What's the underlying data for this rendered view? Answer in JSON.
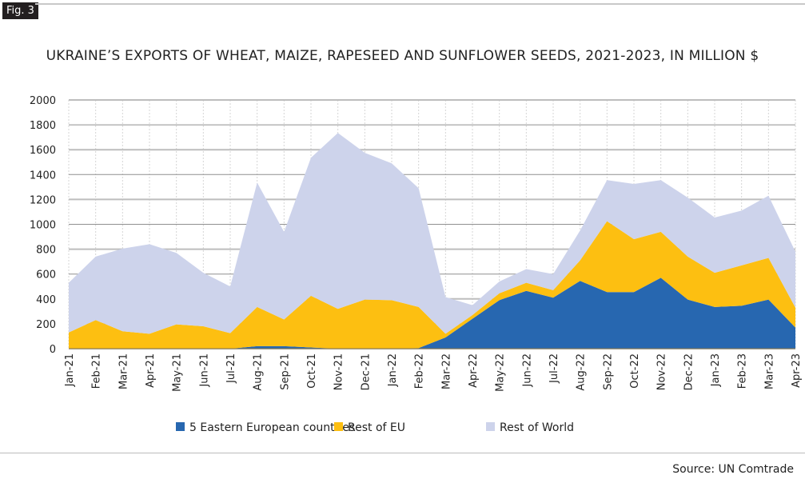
{
  "fig_label": "Fig. 3",
  "source": "Source: UN Comtrade",
  "chart_data": {
    "type": "area",
    "stacked": true,
    "title": "UKRAINE’S EXPORTS OF WHEAT, MAIZE, RAPESEED AND SUNFLOWER SEEDS, 2021-2023, IN MILLION $",
    "xlabel": "",
    "ylabel": "",
    "ylim": [
      0,
      2000
    ],
    "yticks": [
      0,
      200,
      400,
      600,
      800,
      1000,
      1200,
      1400,
      1600,
      1800,
      2000
    ],
    "grid": true,
    "legend_placement": "bottom",
    "categories": [
      "Jan-21",
      "Feb-21",
      "Mar-21",
      "Apr-21",
      "May-21",
      "Jun-21",
      "Jul-21",
      "Aug-21",
      "Sep-21",
      "Oct-21",
      "Nov-21",
      "Dec-21",
      "Jan-22",
      "Feb-22",
      "Mar-22",
      "Apr-22",
      "May-22",
      "Jun-22",
      "Jul-22",
      "Aug-22",
      "Sep-22",
      "Oct-22",
      "Nov-22",
      "Dec-22",
      "Jan-23",
      "Feb-23",
      "Mar-23",
      "Apr-23"
    ],
    "series": [
      {
        "name": "5 Eastern European countries",
        "color": "#2767b0",
        "values": [
          0,
          0,
          0,
          0,
          0,
          0,
          0,
          20,
          20,
          10,
          0,
          0,
          0,
          5,
          90,
          240,
          390,
          465,
          410,
          545,
          455,
          455,
          570,
          395,
          335,
          345,
          395,
          170
        ]
      },
      {
        "name": "Rest of EU",
        "color": "#fdbf11",
        "values": [
          130,
          230,
          140,
          120,
          195,
          180,
          125,
          315,
          215,
          415,
          320,
          395,
          390,
          330,
          30,
          30,
          55,
          65,
          60,
          165,
          570,
          425,
          370,
          345,
          275,
          325,
          335,
          160
        ]
      },
      {
        "name": "Rest of World",
        "color": "#cdd3eb",
        "values": [
          400,
          510,
          665,
          720,
          575,
          430,
          375,
          1000,
          705,
          1110,
          1415,
          1180,
          1100,
          955,
          295,
          80,
          95,
          110,
          130,
          240,
          330,
          445,
          415,
          475,
          445,
          440,
          500,
          450
        ]
      }
    ]
  }
}
